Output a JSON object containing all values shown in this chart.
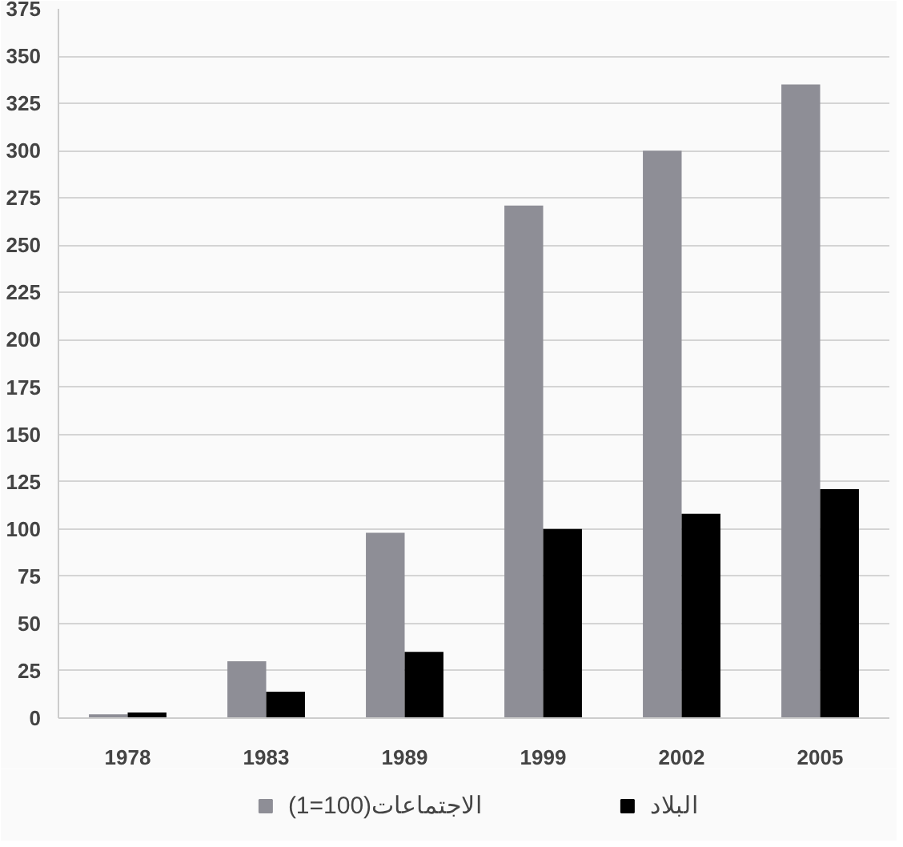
{
  "chart_data": {
    "type": "bar",
    "categories": [
      "1978",
      "1983",
      "1989",
      "1999",
      "2002",
      "2005"
    ],
    "series": [
      {
        "name": "(1=100)الاجتماعات",
        "color": "#8e8e96",
        "values": [
          2,
          30,
          98,
          271,
          300,
          335
        ]
      },
      {
        "name": "البلاد",
        "color": "#000000",
        "values": [
          3,
          14,
          35,
          100,
          108,
          121
        ]
      }
    ],
    "ylim": [
      0,
      375
    ],
    "yticks": [
      0,
      25,
      50,
      75,
      100,
      125,
      150,
      175,
      200,
      225,
      250,
      275,
      300,
      325,
      350,
      375
    ],
    "grid": "y",
    "legend": "bottom"
  }
}
